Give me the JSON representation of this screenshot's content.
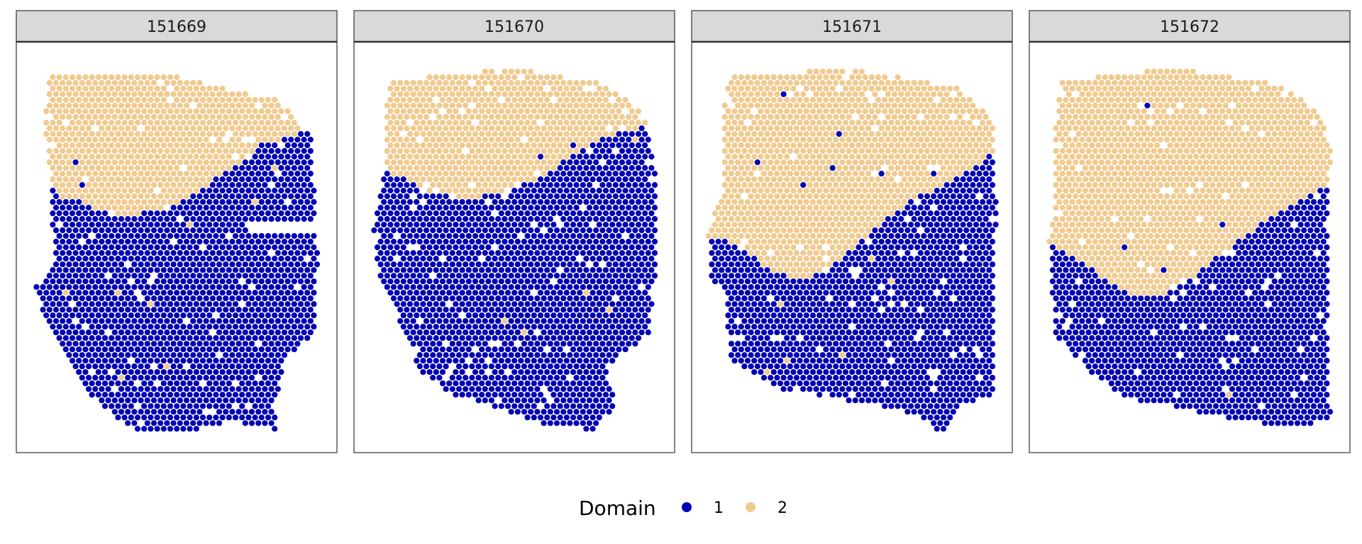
{
  "colors": {
    "domain_1": "#0000b3",
    "domain_2": "#f0ca8f",
    "strip_fill": "#d9d9d9",
    "panel_border": "#333333"
  },
  "chart_data": {
    "type": "scatter",
    "title": "",
    "facet_labels": [
      "151669",
      "151670",
      "151671",
      "151672"
    ],
    "xlabel": "",
    "ylabel": "",
    "grid": false,
    "axes_ticks": false,
    "legend": {
      "title": "Domain",
      "position": "bottom",
      "entries": [
        {
          "label": "1",
          "color": "#0000b3"
        },
        {
          "label": "2",
          "color": "#f0ca8f"
        }
      ]
    },
    "panels": [
      {
        "sample": "151669",
        "outline": [
          [
            0.08,
            0.07
          ],
          [
            0.45,
            0.06
          ],
          [
            0.83,
            0.13
          ],
          [
            0.94,
            0.22
          ],
          [
            0.96,
            0.52
          ],
          [
            0.95,
            0.72
          ],
          [
            0.85,
            0.78
          ],
          [
            0.82,
            0.96
          ],
          [
            0.68,
            0.94
          ],
          [
            0.55,
            0.96
          ],
          [
            0.37,
            0.96
          ],
          [
            0.25,
            0.9
          ],
          [
            0.17,
            0.82
          ],
          [
            0.08,
            0.7
          ],
          [
            0.04,
            0.6
          ],
          [
            0.1,
            0.55
          ],
          [
            0.09,
            0.35
          ],
          [
            0.07,
            0.2
          ]
        ],
        "boundary": [
          [
            0.0,
            0.34
          ],
          [
            0.12,
            0.36
          ],
          [
            0.22,
            0.4
          ],
          [
            0.32,
            0.42
          ],
          [
            0.45,
            0.41
          ],
          [
            0.55,
            0.37
          ],
          [
            0.68,
            0.3
          ],
          [
            0.78,
            0.24
          ],
          [
            0.88,
            0.22
          ],
          [
            1.0,
            0.19
          ]
        ],
        "holes": [
          {
            "cx": 0.86,
            "cy": 0.45,
            "rx": 0.16,
            "ry": 0.012
          }
        ]
      },
      {
        "sample": "151670",
        "outline": [
          [
            0.1,
            0.08
          ],
          [
            0.5,
            0.05
          ],
          [
            0.8,
            0.09
          ],
          [
            0.93,
            0.17
          ],
          [
            0.96,
            0.3
          ],
          [
            0.96,
            0.58
          ],
          [
            0.94,
            0.72
          ],
          [
            0.8,
            0.8
          ],
          [
            0.83,
            0.9
          ],
          [
            0.76,
            0.96
          ],
          [
            0.62,
            0.95
          ],
          [
            0.5,
            0.92
          ],
          [
            0.3,
            0.87
          ],
          [
            0.2,
            0.82
          ],
          [
            0.14,
            0.72
          ],
          [
            0.05,
            0.55
          ],
          [
            0.04,
            0.45
          ],
          [
            0.08,
            0.3
          ],
          [
            0.08,
            0.16
          ]
        ],
        "boundary": [
          [
            0.0,
            0.3
          ],
          [
            0.12,
            0.32
          ],
          [
            0.22,
            0.36
          ],
          [
            0.35,
            0.38
          ],
          [
            0.48,
            0.36
          ],
          [
            0.6,
            0.32
          ],
          [
            0.7,
            0.26
          ],
          [
            0.8,
            0.22
          ],
          [
            0.9,
            0.2
          ],
          [
            1.0,
            0.16
          ]
        ],
        "holes": []
      },
      {
        "sample": "151671",
        "outline": [
          [
            0.1,
            0.07
          ],
          [
            0.5,
            0.05
          ],
          [
            0.85,
            0.1
          ],
          [
            0.96,
            0.18
          ],
          [
            0.97,
            0.4
          ],
          [
            0.96,
            0.88
          ],
          [
            0.85,
            0.9
          ],
          [
            0.8,
            0.97
          ],
          [
            0.7,
            0.92
          ],
          [
            0.45,
            0.88
          ],
          [
            0.28,
            0.86
          ],
          [
            0.1,
            0.78
          ],
          [
            0.09,
            0.62
          ],
          [
            0.04,
            0.58
          ],
          [
            0.03,
            0.46
          ],
          [
            0.08,
            0.35
          ],
          [
            0.08,
            0.15
          ]
        ],
        "boundary": [
          [
            0.0,
            0.47
          ],
          [
            0.12,
            0.49
          ],
          [
            0.22,
            0.55
          ],
          [
            0.32,
            0.58
          ],
          [
            0.38,
            0.57
          ],
          [
            0.48,
            0.52
          ],
          [
            0.58,
            0.45
          ],
          [
            0.7,
            0.38
          ],
          [
            0.8,
            0.34
          ],
          [
            0.9,
            0.3
          ],
          [
            1.0,
            0.24
          ]
        ],
        "holes": []
      },
      {
        "sample": "151672",
        "outline": [
          [
            0.08,
            0.08
          ],
          [
            0.45,
            0.05
          ],
          [
            0.8,
            0.09
          ],
          [
            0.92,
            0.16
          ],
          [
            0.96,
            0.25
          ],
          [
            0.95,
            0.62
          ],
          [
            0.96,
            0.94
          ],
          [
            0.8,
            0.95
          ],
          [
            0.55,
            0.92
          ],
          [
            0.3,
            0.88
          ],
          [
            0.18,
            0.82
          ],
          [
            0.06,
            0.72
          ],
          [
            0.04,
            0.48
          ],
          [
            0.06,
            0.4
          ],
          [
            0.06,
            0.2
          ]
        ],
        "boundary": [
          [
            0.0,
            0.48
          ],
          [
            0.12,
            0.52
          ],
          [
            0.22,
            0.58
          ],
          [
            0.32,
            0.62
          ],
          [
            0.4,
            0.63
          ],
          [
            0.5,
            0.58
          ],
          [
            0.6,
            0.52
          ],
          [
            0.7,
            0.46
          ],
          [
            0.8,
            0.41
          ],
          [
            0.9,
            0.36
          ],
          [
            1.0,
            0.32
          ]
        ],
        "holes": []
      }
    ]
  }
}
